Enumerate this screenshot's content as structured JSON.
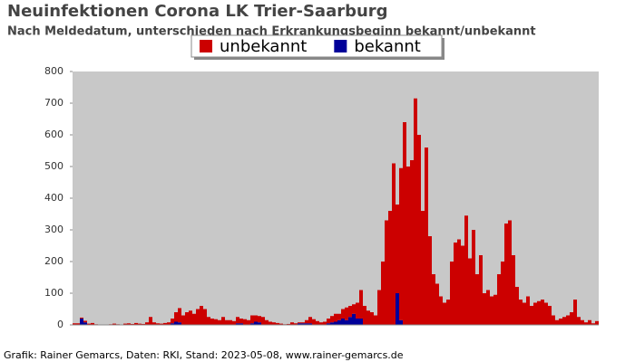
{
  "chart_data": {
    "type": "stacked_bar",
    "title": "Neuinfektionen Corona LK Trier-Saarburg",
    "subtitle": "Nach Meldedatum, unterschieden nach Erkrankungsbeginn bekannt/unbekannt",
    "footer": "Grafik: Rainer Gemarcs, Daten: RKI, Stand: 2023-05-08, www.rainer-gemarcs.de",
    "categories": [
      null,
      null,
      null,
      null,
      null,
      null,
      null,
      null,
      null,
      null,
      null,
      null,
      null,
      null,
      null,
      null,
      null,
      null,
      null,
      null,
      null,
      null,
      null,
      null,
      null,
      null,
      null,
      null,
      null,
      null,
      null,
      null,
      null,
      null,
      null,
      null,
      null,
      null,
      null,
      null,
      null,
      null,
      null,
      null,
      null,
      null,
      null,
      null,
      null,
      null,
      null,
      null,
      null,
      null,
      null,
      null,
      null,
      null,
      null,
      null,
      null,
      null,
      null,
      null,
      null,
      null,
      null,
      null,
      null,
      null,
      null,
      null,
      null,
      null,
      null,
      null,
      null,
      null,
      null,
      null,
      null,
      null,
      null,
      null,
      null,
      null,
      null,
      null,
      null,
      null,
      null,
      null,
      null,
      null,
      null,
      null,
      null,
      null,
      null,
      null,
      null,
      null,
      null,
      null,
      null,
      null,
      null,
      null,
      null,
      null,
      null,
      null,
      null,
      null,
      null,
      null,
      null,
      null,
      null,
      null,
      null,
      null,
      null,
      null,
      null,
      null,
      null,
      null,
      null,
      null,
      null,
      null,
      null,
      null,
      null,
      null,
      null,
      null,
      null,
      null,
      null,
      null,
      null,
      null,
      null
    ],
    "series": [
      {
        "name": "unbekannt",
        "color": "#cc0000",
        "values": [
          5,
          5,
          3,
          5,
          4,
          6,
          2,
          0,
          1,
          0,
          2,
          4,
          2,
          1,
          4,
          5,
          3,
          6,
          4,
          3,
          8,
          25,
          8,
          5,
          4,
          6,
          8,
          15,
          30,
          45,
          30,
          40,
          45,
          35,
          50,
          60,
          50,
          25,
          20,
          18,
          15,
          25,
          15,
          15,
          12,
          20,
          15,
          18,
          15,
          25,
          20,
          20,
          25,
          15,
          10,
          8,
          6,
          4,
          2,
          3,
          8,
          5,
          3,
          3,
          10,
          20,
          18,
          12,
          8,
          10,
          15,
          20,
          25,
          20,
          30,
          40,
          35,
          30,
          50,
          90,
          60,
          45,
          40,
          30,
          110,
          200,
          330,
          360,
          510,
          280,
          480,
          640,
          500,
          520,
          715,
          600,
          360,
          560,
          280,
          160,
          130,
          90,
          70,
          80,
          200,
          260,
          270,
          250,
          345,
          210,
          300,
          160,
          220,
          100,
          110,
          90,
          95,
          160,
          200,
          320,
          330,
          220,
          120,
          80,
          70,
          90,
          60,
          70,
          75,
          80,
          70,
          60,
          30,
          15,
          20,
          25,
          30,
          40,
          80,
          25,
          15,
          8,
          15,
          5,
          12
        ]
      },
      {
        "name": "bekannt",
        "color": "#000099",
        "values": [
          0,
          0,
          20,
          8,
          0,
          0,
          0,
          0,
          0,
          0,
          0,
          0,
          0,
          0,
          0,
          0,
          0,
          0,
          0,
          0,
          0,
          0,
          0,
          0,
          0,
          0,
          0,
          5,
          10,
          8,
          0,
          0,
          0,
          0,
          0,
          0,
          0,
          0,
          0,
          0,
          0,
          0,
          0,
          0,
          0,
          5,
          5,
          0,
          0,
          5,
          10,
          8,
          0,
          0,
          0,
          0,
          0,
          0,
          0,
          0,
          0,
          0,
          5,
          5,
          5,
          5,
          0,
          0,
          0,
          0,
          5,
          8,
          10,
          15,
          20,
          15,
          25,
          35,
          20,
          20,
          0,
          0,
          0,
          0,
          0,
          0,
          0,
          0,
          0,
          100,
          15,
          0,
          0,
          0,
          0,
          0,
          0,
          0,
          0,
          0,
          0,
          0,
          0,
          0,
          0,
          0,
          0,
          0,
          0,
          0,
          0,
          0,
          0,
          0,
          0,
          0,
          0,
          0,
          0,
          0,
          0,
          0,
          0,
          0,
          0,
          0,
          0,
          0,
          0,
          0,
          0,
          0,
          0,
          0,
          0,
          0,
          0,
          0,
          0,
          0,
          0,
          0,
          0,
          0,
          0
        ]
      }
    ],
    "ylim": [
      0,
      800
    ],
    "yticks": [
      0,
      100,
      200,
      300,
      400,
      500,
      600,
      700,
      800
    ],
    "grid": false,
    "background": "#c8c8c8"
  }
}
